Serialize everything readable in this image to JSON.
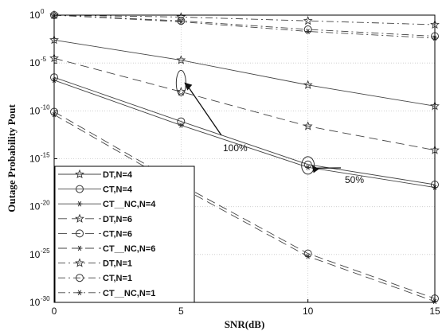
{
  "chart_data": {
    "type": "line",
    "xlabel": "SNR(dB)",
    "ylabel": "Outage Probability  Pout",
    "x": [
      0,
      5,
      10,
      15
    ],
    "xticks": [
      "0",
      "5",
      "10",
      "15"
    ],
    "xlim": [
      0,
      15
    ],
    "yscale": "log",
    "ylim_exp": [
      -30,
      0
    ],
    "yticks": [
      {
        "base": "10",
        "exp": "0"
      },
      {
        "base": "10",
        "exp": "-5"
      },
      {
        "base": "10",
        "exp": "-10"
      },
      {
        "base": "10",
        "exp": "-15"
      },
      {
        "base": "10",
        "exp": "-20"
      },
      {
        "base": "10",
        "exp": "-25"
      },
      {
        "base": "10",
        "exp": "-30"
      }
    ],
    "grid": true,
    "legend_position": "bottom-left",
    "series": [
      {
        "name": "DT,N=4",
        "marker": "star",
        "dash": "solid",
        "log10_values": [
          -2.6,
          -4.7,
          -7.3,
          -9.5
        ]
      },
      {
        "name": "CT,N=4",
        "marker": "circle",
        "dash": "solid",
        "log10_values": [
          -6.5,
          -11.1,
          -15.6,
          -17.7
        ]
      },
      {
        "name": "CT__NC,N=4",
        "marker": "asterisk",
        "dash": "solid",
        "log10_values": [
          -6.8,
          -11.5,
          -15.9,
          -18.0
        ]
      },
      {
        "name": "DT,N=6",
        "marker": "star",
        "dash": "dashed",
        "log10_values": [
          -4.5,
          -8.0,
          -11.6,
          -14.1
        ]
      },
      {
        "name": "CT,N=6",
        "marker": "circle",
        "dash": "dashed",
        "log10_values": [
          -10.1,
          -17.7,
          -24.9,
          -29.6
        ]
      },
      {
        "name": "CT__NC,N=6",
        "marker": "asterisk",
        "dash": "dashed",
        "log10_values": [
          -10.4,
          -18.0,
          -25.2,
          -29.9
        ]
      },
      {
        "name": "DT,N=1",
        "marker": "star",
        "dash": "dashdot",
        "log10_values": [
          0.0,
          -0.2,
          -0.6,
          -1.0
        ]
      },
      {
        "name": "CT,N=1",
        "marker": "circle",
        "dash": "dashdot",
        "log10_values": [
          0.0,
          -0.6,
          -1.5,
          -2.2
        ]
      },
      {
        "name": "CT__NC,N=1",
        "marker": "asterisk",
        "dash": "dashdot",
        "log10_values": [
          0.0,
          -0.7,
          -1.7,
          -2.4
        ]
      }
    ],
    "annotations": [
      {
        "text": "100%",
        "x": 5,
        "log10_y": -9.0
      },
      {
        "text": "50%",
        "x": 10,
        "log10_y": -16.0
      }
    ]
  }
}
